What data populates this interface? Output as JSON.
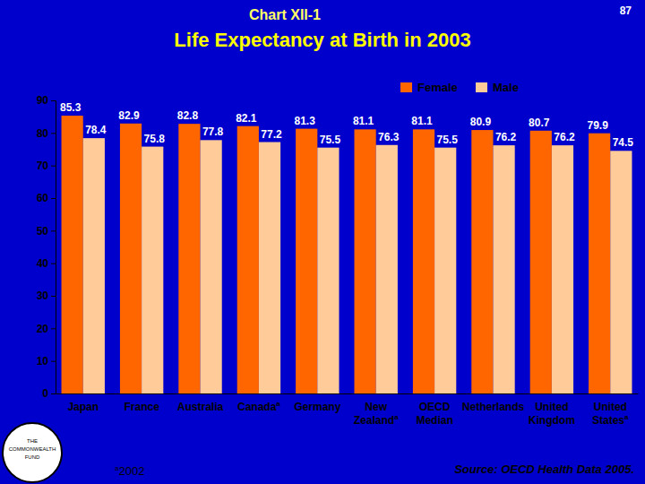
{
  "chart_data": {
    "type": "bar",
    "chart_label": "Chart XII-1",
    "page_number": "87",
    "title": "Life Expectancy at Birth in 2003",
    "categories": [
      "Japan",
      "France",
      "Australia",
      "Canada",
      "Germany",
      "New Zealand",
      "OECD Median",
      "Netherlands",
      "United Kingdom",
      "United States"
    ],
    "category_marks": [
      null,
      null,
      null,
      "a",
      null,
      "a",
      null,
      null,
      null,
      "a"
    ],
    "series": [
      {
        "name": "Female",
        "color": "#ff6600",
        "values": [
          85.3,
          82.9,
          82.8,
          82.1,
          81.3,
          81.1,
          81.1,
          80.9,
          80.7,
          79.9
        ]
      },
      {
        "name": "Male",
        "color": "#ffcc99",
        "values": [
          78.4,
          75.8,
          77.8,
          77.2,
          75.5,
          76.3,
          75.5,
          76.2,
          76.2,
          74.5
        ]
      }
    ],
    "ylim": [
      0,
      90
    ],
    "yticks": [
      0,
      10,
      20,
      30,
      40,
      50,
      60,
      70,
      80,
      90
    ],
    "grid": false,
    "legend": "top-right",
    "data_labels": true,
    "footnote": {
      "mark": "a",
      "text": "2002"
    },
    "source": "Source: OECD Health Data 2005.",
    "logo_text": [
      "THE",
      "COMMONWEALTH",
      "FUND"
    ]
  }
}
